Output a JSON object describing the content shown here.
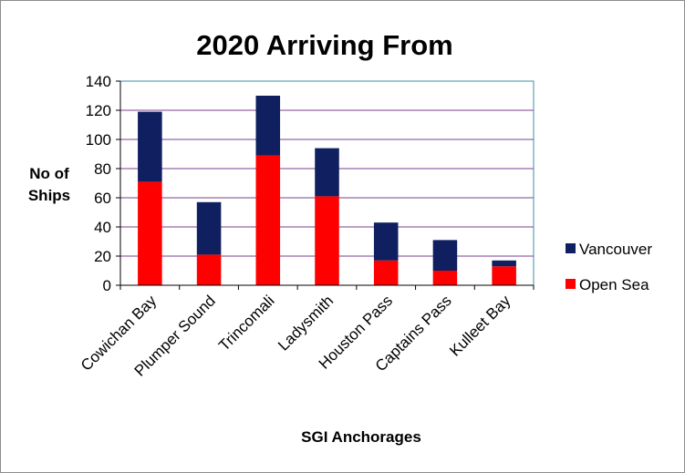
{
  "chart_data": {
    "type": "bar",
    "stacked": true,
    "title": "2020 Arriving From",
    "xlabel": "SGI Anchorages",
    "ylabel": [
      "No of",
      "Ships"
    ],
    "ylim": [
      0,
      140
    ],
    "yticks": [
      0,
      20,
      40,
      60,
      80,
      100,
      120,
      140
    ],
    "grid": true,
    "legend_position": "right",
    "categories": [
      "Cowichan Bay",
      "Plumper Sound",
      "Trincomali",
      "Ladysmith",
      "Houston Pass",
      "Captains Pass",
      "Kulleet Bay"
    ],
    "series": [
      {
        "name": "Open Sea",
        "color": "#ff0000",
        "values": [
          71,
          21,
          89,
          61,
          17,
          10,
          13
        ]
      },
      {
        "name": "Vancouver",
        "color": "#0f1f5f",
        "values": [
          48,
          36,
          41,
          33,
          26,
          21,
          4
        ]
      }
    ],
    "gridline_color": "#7b3f8f",
    "plot_border_color": "#3f8fa0"
  }
}
